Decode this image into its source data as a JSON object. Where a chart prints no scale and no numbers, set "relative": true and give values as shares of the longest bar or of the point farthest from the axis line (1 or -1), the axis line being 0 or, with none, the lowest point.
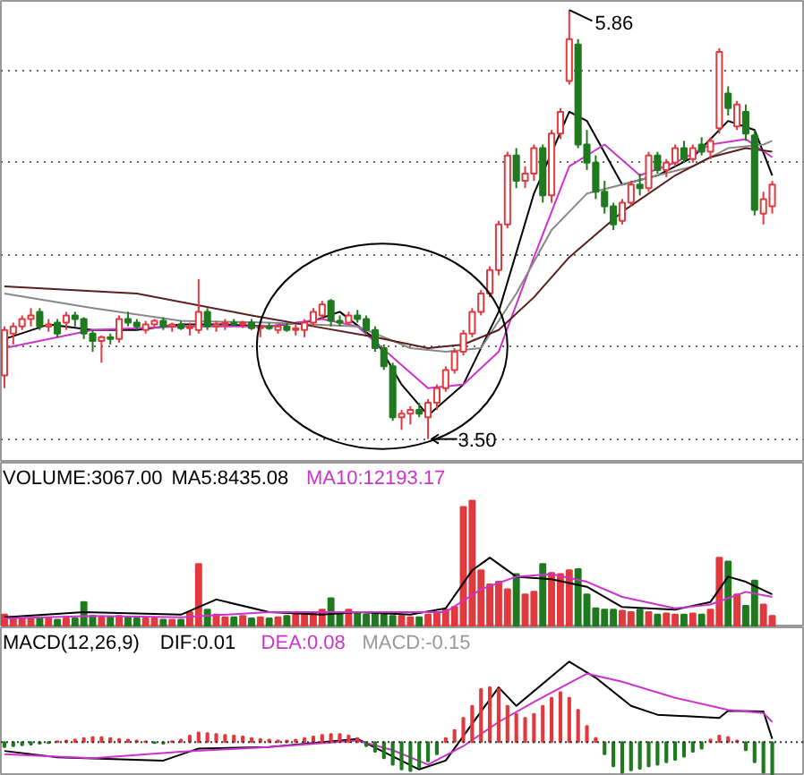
{
  "chart_data": [
    {
      "type": "candlestick",
      "categories": [
        null,
        null,
        null,
        null,
        null,
        null,
        null,
        null,
        null,
        null,
        null,
        null,
        null,
        null,
        null,
        null,
        null,
        null,
        null,
        null,
        null,
        null,
        null,
        null,
        null,
        null,
        null,
        null,
        null,
        null,
        null,
        null,
        null,
        null,
        null,
        null,
        null,
        null,
        null,
        null,
        null,
        null,
        null,
        null,
        null,
        null,
        null,
        null,
        null,
        null,
        null,
        null,
        null,
        null,
        null,
        null,
        null,
        null,
        null,
        null,
        null,
        null,
        null,
        null,
        null,
        null,
        null,
        null,
        null,
        null,
        null,
        null,
        null,
        null,
        null,
        null,
        null,
        null,
        null,
        null,
        null,
        null,
        null,
        null,
        null,
        null,
        null,
        null
      ],
      "ohlc": [
        [
          3.85,
          4.12,
          3.78,
          4.1
        ],
        [
          4.08,
          4.14,
          4.02,
          4.12
        ],
        [
          4.12,
          4.18,
          4.1,
          4.16
        ],
        [
          4.16,
          4.22,
          4.12,
          4.18
        ],
        [
          4.2,
          4.22,
          4.1,
          4.12
        ],
        [
          4.12,
          4.16,
          4.09,
          4.13
        ],
        [
          4.14,
          4.16,
          4.06,
          4.08
        ],
        [
          4.14,
          4.2,
          4.1,
          4.18
        ],
        [
          4.18,
          4.2,
          4.12,
          4.16
        ],
        [
          4.16,
          4.17,
          4.05,
          4.08
        ],
        [
          4.08,
          4.1,
          3.98,
          4.04
        ],
        [
          4.04,
          4.07,
          3.92,
          4.06
        ],
        [
          4.06,
          4.08,
          4.02,
          4.05
        ],
        [
          4.05,
          4.18,
          4.03,
          4.16
        ],
        [
          4.16,
          4.2,
          4.12,
          4.14
        ],
        [
          4.14,
          4.16,
          4.1,
          4.12
        ],
        [
          4.1,
          4.15,
          4.08,
          4.13
        ],
        [
          4.13,
          4.16,
          4.11,
          4.15
        ],
        [
          4.15,
          4.17,
          4.1,
          4.12
        ],
        [
          4.12,
          4.14,
          4.09,
          4.13
        ],
        [
          4.13,
          4.15,
          4.1,
          4.11
        ],
        [
          4.11,
          4.14,
          4.07,
          4.12
        ],
        [
          4.1,
          4.38,
          4.08,
          4.2
        ],
        [
          4.2,
          4.22,
          4.1,
          4.12
        ],
        [
          4.12,
          4.15,
          4.09,
          4.13
        ],
        [
          4.13,
          4.16,
          4.1,
          4.14
        ],
        [
          4.14,
          4.16,
          4.12,
          4.13
        ],
        [
          4.13,
          4.15,
          4.11,
          4.14
        ],
        [
          4.14,
          4.16,
          4.1,
          4.11
        ],
        [
          4.11,
          4.13,
          4.06,
          4.12
        ],
        [
          4.12,
          4.14,
          4.1,
          4.11
        ],
        [
          4.1,
          4.13,
          4.08,
          4.12
        ],
        [
          4.12,
          4.14,
          4.09,
          4.1
        ],
        [
          4.1,
          4.13,
          4.07,
          4.11
        ],
        [
          4.1,
          4.16,
          4.06,
          4.14
        ],
        [
          4.14,
          4.22,
          4.12,
          4.2
        ],
        [
          4.18,
          4.26,
          4.16,
          4.24
        ],
        [
          4.26,
          4.27,
          4.12,
          4.15
        ],
        [
          4.15,
          4.18,
          4.12,
          4.14
        ],
        [
          4.14,
          4.2,
          4.13,
          4.18
        ],
        [
          4.18,
          4.21,
          4.14,
          4.16
        ],
        [
          4.16,
          4.18,
          4.08,
          4.1
        ],
        [
          4.1,
          4.12,
          3.98,
          4.0
        ],
        [
          4.0,
          4.02,
          3.88,
          3.9
        ],
        [
          3.9,
          3.92,
          3.6,
          3.62
        ],
        [
          3.62,
          3.66,
          3.55,
          3.64
        ],
        [
          3.64,
          3.68,
          3.58,
          3.66
        ],
        [
          3.66,
          3.7,
          3.62,
          3.64
        ],
        [
          3.62,
          3.72,
          3.5,
          3.7
        ],
        [
          3.7,
          3.8,
          3.66,
          3.78
        ],
        [
          3.78,
          3.9,
          3.76,
          3.88
        ],
        [
          3.88,
          4.0,
          3.86,
          3.98
        ],
        [
          3.98,
          4.1,
          3.96,
          4.08
        ],
        [
          4.08,
          4.22,
          4.06,
          4.2
        ],
        [
          4.2,
          4.32,
          4.18,
          4.3
        ],
        [
          4.3,
          4.45,
          4.28,
          4.43
        ],
        [
          4.43,
          4.7,
          4.4,
          4.68
        ],
        [
          4.68,
          5.08,
          4.66,
          5.06
        ],
        [
          5.06,
          5.1,
          4.88,
          4.92
        ],
        [
          4.92,
          5.0,
          4.88,
          4.96
        ],
        [
          4.96,
          5.12,
          4.92,
          5.1
        ],
        [
          5.1,
          5.12,
          4.8,
          4.84
        ],
        [
          4.84,
          5.2,
          4.8,
          5.18
        ],
        [
          5.18,
          5.32,
          5.15,
          5.3
        ],
        [
          5.47,
          5.86,
          5.45,
          5.7
        ],
        [
          5.67,
          5.7,
          5.1,
          5.12
        ],
        [
          5.12,
          5.2,
          4.98,
          5.02
        ],
        [
          5.02,
          5.06,
          4.82,
          4.86
        ],
        [
          4.86,
          4.92,
          4.74,
          4.78
        ],
        [
          4.78,
          4.8,
          4.65,
          4.68
        ],
        [
          4.7,
          4.82,
          4.68,
          4.8
        ],
        [
          4.8,
          4.92,
          4.78,
          4.9
        ],
        [
          4.9,
          4.96,
          4.84,
          4.88
        ],
        [
          4.88,
          5.08,
          4.86,
          5.06
        ],
        [
          5.06,
          5.08,
          4.96,
          4.98
        ],
        [
          4.98,
          5.04,
          4.94,
          5.02
        ],
        [
          5.02,
          5.12,
          5.0,
          5.1
        ],
        [
          5.1,
          5.14,
          5.02,
          5.04
        ],
        [
          5.04,
          5.12,
          5.02,
          5.1
        ],
        [
          5.12,
          5.16,
          5.06,
          5.08
        ],
        [
          5.08,
          5.16,
          5.04,
          5.14
        ],
        [
          5.21,
          5.65,
          5.18,
          5.63
        ],
        [
          5.4,
          5.44,
          5.28,
          5.32
        ],
        [
          5.22,
          5.36,
          5.2,
          5.34
        ],
        [
          5.3,
          5.34,
          5.14,
          5.18
        ],
        [
          5.17,
          5.2,
          4.73,
          4.76
        ],
        [
          4.74,
          4.86,
          4.68,
          4.82
        ],
        [
          4.78,
          4.92,
          4.74,
          4.9
        ]
      ],
      "colors": [
        "#e0393e",
        "#e0393e",
        "#e0393e",
        "#e0393e",
        "#1f7a1f",
        "#e0393e",
        "#1f7a1f",
        "#e0393e",
        "#1f7a1f",
        "#1f7a1f",
        "#1f7a1f",
        "#e0393e",
        "#1f7a1f",
        "#e0393e",
        "#1f7a1f",
        "#1f7a1f",
        "#e0393e",
        "#e0393e",
        "#1f7a1f",
        "#e0393e",
        "#1f7a1f",
        "#e0393e",
        "#e0393e",
        "#1f7a1f",
        "#e0393e",
        "#e0393e",
        "#1f7a1f",
        "#e0393e",
        "#1f7a1f",
        "#e0393e",
        "#1f7a1f",
        "#e0393e",
        "#1f7a1f",
        "#e0393e",
        "#e0393e",
        "#e0393e",
        "#e0393e",
        "#1f7a1f",
        "#1f7a1f",
        "#e0393e",
        "#1f7a1f",
        "#1f7a1f",
        "#1f7a1f",
        "#1f7a1f",
        "#1f7a1f",
        "#e0393e",
        "#e0393e",
        "#1f7a1f",
        "#e0393e",
        "#e0393e",
        "#e0393e",
        "#e0393e",
        "#e0393e",
        "#e0393e",
        "#e0393e",
        "#e0393e",
        "#e0393e",
        "#e0393e",
        "#1f7a1f",
        "#e0393e",
        "#e0393e",
        "#1f7a1f",
        "#e0393e",
        "#e0393e",
        "#e0393e",
        "#1f7a1f",
        "#1f7a1f",
        "#1f7a1f",
        "#1f7a1f",
        "#1f7a1f",
        "#e0393e",
        "#e0393e",
        "#1f7a1f",
        "#e0393e",
        "#1f7a1f",
        "#e0393e",
        "#e0393e",
        "#1f7a1f",
        "#e0393e",
        "#1f7a1f",
        "#e0393e",
        "#e0393e",
        "#1f7a1f",
        "#e0393e",
        "#1f7a1f",
        "#1f7a1f",
        "#e0393e",
        "#e0393e"
      ],
      "ylim": [
        3.37,
        5.91
      ],
      "yticks": [
        {
          "value": 3.5,
          "label": null
        },
        {
          "value": 4.01,
          "label": null
        },
        {
          "value": 4.51,
          "label": null
        },
        {
          "value": 5.02,
          "label": null
        },
        {
          "value": 5.53,
          "label": null
        }
      ],
      "grid": "y",
      "tick_labels": false,
      "annotations": [
        "5.86",
        "3.50"
      ],
      "series": [
        {
          "type": "line",
          "color": "#000000",
          "values": [
            4.05,
            null,
            null,
            null,
            null,
            4.13,
            null,
            null,
            null,
            null,
            4.1,
            null,
            null,
            null,
            null,
            4.1,
            null,
            null,
            null,
            null,
            4.13,
            null,
            null,
            null,
            null,
            4.13,
            null,
            null,
            null,
            null,
            4.12,
            null,
            null,
            null,
            null,
            4.15,
            null,
            null,
            4.2,
            null,
            null,
            null,
            4.05,
            null,
            null,
            3.8,
            null,
            null,
            3.63,
            null,
            null,
            null,
            3.8,
            null,
            null,
            null,
            4.2,
            null,
            null,
            null,
            4.85,
            null,
            null,
            null,
            5.3,
            null,
            5.25,
            null,
            null,
            null,
            4.9,
            null,
            null,
            null,
            4.95,
            null,
            null,
            null,
            5.05,
            null,
            null,
            null,
            5.25,
            null,
            null,
            5.2,
            null,
            4.95
          ]
        },
        {
          "type": "line",
          "color": "#cc33cc",
          "values": [
            4.0,
            null,
            null,
            null,
            null,
            null,
            null,
            null,
            null,
            null,
            4.1,
            null,
            null,
            null,
            null,
            null,
            null,
            null,
            null,
            null,
            4.12,
            null,
            null,
            null,
            null,
            null,
            null,
            null,
            null,
            null,
            4.12,
            null,
            null,
            null,
            null,
            null,
            4.16,
            null,
            null,
            null,
            4.12,
            null,
            null,
            null,
            3.95,
            null,
            null,
            null,
            3.78,
            null,
            null,
            null,
            3.8,
            null,
            null,
            null,
            3.98,
            null,
            null,
            null,
            4.5,
            null,
            null,
            null,
            5.0,
            null,
            null,
            null,
            5.12,
            null,
            null,
            null,
            4.95,
            null,
            null,
            null,
            5.02,
            null,
            null,
            null,
            5.12,
            null,
            null,
            null,
            5.15,
            null,
            null,
            5.05
          ]
        },
        {
          "type": "line",
          "color": "#888888",
          "values": [
            4.3,
            null,
            null,
            null,
            null,
            null,
            null,
            null,
            null,
            null,
            4.22,
            null,
            null,
            null,
            null,
            null,
            null,
            null,
            null,
            null,
            4.15,
            null,
            null,
            null,
            null,
            null,
            null,
            null,
            null,
            null,
            4.14,
            null,
            null,
            null,
            null,
            null,
            null,
            null,
            null,
            null,
            4.12,
            null,
            null,
            null,
            null,
            null,
            4.0,
            null,
            null,
            null,
            3.98,
            null,
            null,
            null,
            4.0,
            null,
            null,
            null,
            4.3,
            null,
            null,
            null,
            4.65,
            null,
            null,
            null,
            4.85,
            null,
            null,
            null,
            4.9,
            null,
            null,
            null,
            4.95,
            null,
            null,
            null,
            5.0,
            null,
            null,
            null,
            5.1,
            null,
            null,
            null,
            5.12,
            5.14
          ]
        },
        {
          "type": "line",
          "color": "#5a1e1e",
          "values": [
            4.34,
            null,
            null,
            null,
            null,
            null,
            null,
            null,
            null,
            null,
            null,
            null,
            null,
            null,
            null,
            4.3,
            null,
            null,
            null,
            null,
            null,
            null,
            null,
            null,
            null,
            null,
            null,
            null,
            4.18,
            null,
            null,
            null,
            null,
            null,
            null,
            4.12,
            null,
            null,
            null,
            null,
            null,
            null,
            4.06,
            null,
            null,
            null,
            null,
            null,
            4.0,
            null,
            null,
            null,
            4.02,
            null,
            null,
            null,
            4.1,
            null,
            null,
            null,
            4.28,
            null,
            null,
            null,
            4.5,
            null,
            null,
            null,
            null,
            null,
            4.75,
            null,
            null,
            null,
            null,
            null,
            4.95,
            null,
            null,
            null,
            5.05,
            null,
            null,
            null,
            5.1,
            null,
            null,
            5.08
          ]
        }
      ]
    },
    {
      "type": "bar",
      "relative": true,
      "title": "VOLUME:3067.00",
      "legend": "top left",
      "categories": [
        null,
        null,
        null,
        null,
        null,
        null,
        null,
        null,
        null,
        null,
        null,
        null,
        null,
        null,
        null,
        null,
        null,
        null,
        null,
        null,
        null,
        null,
        null,
        null,
        null,
        null,
        null,
        null,
        null,
        null,
        null,
        null,
        null,
        null,
        null,
        null,
        null,
        null,
        null,
        null,
        null,
        null,
        null,
        null,
        null,
        null,
        null,
        null,
        null,
        null,
        null,
        null,
        null,
        null,
        null,
        null,
        null,
        null,
        null,
        null,
        null,
        null,
        null,
        null,
        null,
        null,
        null,
        null,
        null,
        null,
        null,
        null,
        null,
        null,
        null,
        null,
        null,
        null,
        null,
        null,
        null,
        null,
        null,
        null,
        null,
        null,
        null,
        null
      ],
      "series": [
        {
          "values": [
            0.1,
            0.08,
            0.07,
            0.07,
            0.08,
            0.07,
            0.06,
            0.07,
            0.07,
            0.2,
            0.09,
            0.08,
            0.08,
            0.09,
            0.08,
            0.07,
            0.07,
            0.07,
            0.06,
            0.06,
            0.06,
            0.12,
            0.5,
            0.14,
            0.1,
            0.08,
            0.08,
            0.09,
            0.07,
            0.08,
            0.07,
            0.08,
            0.09,
            0.1,
            0.1,
            0.12,
            0.14,
            0.23,
            0.12,
            0.14,
            0.12,
            0.1,
            0.11,
            0.1,
            0.09,
            0.09,
            0.08,
            0.08,
            0.1,
            0.12,
            0.14,
            0.16,
            0.95,
            1.0,
            0.45,
            0.34,
            0.36,
            0.3,
            0.42,
            0.26,
            0.28,
            0.5,
            0.43,
            0.42,
            0.45,
            0.46,
            0.26,
            0.15,
            0.14,
            0.14,
            0.13,
            0.12,
            0.14,
            0.12,
            0.1,
            0.11,
            0.1,
            0.1,
            0.11,
            0.1,
            0.14,
            0.55,
            0.52,
            0.26,
            0.17,
            0.37,
            0.18,
            0.09
          ],
          "colors": [
            "#e0393e",
            "#e0393e",
            "#e0393e",
            "#e0393e",
            "#1f7a1f",
            "#e0393e",
            "#1f7a1f",
            "#e0393e",
            "#1f7a1f",
            "#1f7a1f",
            "#1f7a1f",
            "#e0393e",
            "#1f7a1f",
            "#e0393e",
            "#1f7a1f",
            "#1f7a1f",
            "#e0393e",
            "#e0393e",
            "#1f7a1f",
            "#e0393e",
            "#1f7a1f",
            "#e0393e",
            "#e0393e",
            "#1f7a1f",
            "#e0393e",
            "#e0393e",
            "#1f7a1f",
            "#e0393e",
            "#1f7a1f",
            "#e0393e",
            "#1f7a1f",
            "#e0393e",
            "#1f7a1f",
            "#e0393e",
            "#e0393e",
            "#e0393e",
            "#e0393e",
            "#1f7a1f",
            "#1f7a1f",
            "#e0393e",
            "#1f7a1f",
            "#1f7a1f",
            "#1f7a1f",
            "#1f7a1f",
            "#1f7a1f",
            "#e0393e",
            "#e0393e",
            "#1f7a1f",
            "#e0393e",
            "#e0393e",
            "#e0393e",
            "#e0393e",
            "#e0393e",
            "#e0393e",
            "#e0393e",
            "#e0393e",
            "#e0393e",
            "#e0393e",
            "#1f7a1f",
            "#e0393e",
            "#e0393e",
            "#1f7a1f",
            "#e0393e",
            "#e0393e",
            "#e0393e",
            "#1f7a1f",
            "#1f7a1f",
            "#1f7a1f",
            "#1f7a1f",
            "#1f7a1f",
            "#e0393e",
            "#e0393e",
            "#1f7a1f",
            "#e0393e",
            "#1f7a1f",
            "#e0393e",
            "#e0393e",
            "#1f7a1f",
            "#e0393e",
            "#1f7a1f",
            "#e0393e",
            "#e0393e",
            "#1f7a1f",
            "#e0393e",
            "#1f7a1f",
            "#1f7a1f",
            "#e0393e",
            "#e0393e"
          ]
        },
        {
          "type": "line",
          "name": "MA5:8435.08",
          "color": "#000000",
          "values": [
            0.08,
            null,
            null,
            null,
            null,
            null,
            null,
            null,
            null,
            0.12,
            null,
            null,
            null,
            null,
            null,
            null,
            null,
            null,
            null,
            null,
            0.1,
            null,
            null,
            null,
            0.22,
            null,
            null,
            null,
            null,
            null,
            0.12,
            null,
            null,
            null,
            null,
            null,
            0.1,
            null,
            null,
            null,
            0.12,
            null,
            null,
            null,
            null,
            null,
            0.1,
            null,
            null,
            null,
            0.15,
            null,
            null,
            0.45,
            null,
            0.55,
            null,
            null,
            0.4,
            null,
            null,
            null,
            0.38,
            null,
            null,
            null,
            0.32,
            null,
            null,
            null,
            0.16,
            null,
            null,
            null,
            null,
            null,
            0.14,
            null,
            null,
            null,
            0.2,
            null,
            0.4,
            null,
            0.36,
            null,
            null,
            0.26
          ]
        },
        {
          "type": "line",
          "name": "MA10:12193.17",
          "color": "#cc33cc",
          "values": [
            0.07,
            null,
            null,
            null,
            null,
            null,
            null,
            null,
            null,
            null,
            0.09,
            null,
            null,
            null,
            null,
            null,
            null,
            null,
            null,
            null,
            0.08,
            null,
            null,
            null,
            null,
            null,
            null,
            null,
            null,
            null,
            0.12,
            null,
            null,
            null,
            null,
            null,
            null,
            null,
            null,
            null,
            0.12,
            null,
            null,
            null,
            null,
            null,
            null,
            null,
            null,
            null,
            0.12,
            null,
            null,
            null,
            0.3,
            null,
            null,
            null,
            0.4,
            null,
            null,
            null,
            0.42,
            null,
            null,
            null,
            0.36,
            null,
            null,
            null,
            0.24,
            null,
            null,
            null,
            null,
            null,
            0.15,
            null,
            null,
            null,
            0.18,
            null,
            null,
            null,
            0.28,
            null,
            null,
            0.24
          ]
        }
      ]
    },
    {
      "type": "bar",
      "relative": true,
      "title": "MACD(12,26,9)",
      "legend": "top left",
      "ref_lines": [
        {
          "axis": "y",
          "value": 0,
          "line_style": "dotted",
          "color": "#333333"
        }
      ],
      "categories": [
        null,
        null,
        null,
        null,
        null,
        null,
        null,
        null,
        null,
        null,
        null,
        null,
        null,
        null,
        null,
        null,
        null,
        null,
        null,
        null,
        null,
        null,
        null,
        null,
        null,
        null,
        null,
        null,
        null,
        null,
        null,
        null,
        null,
        null,
        null,
        null,
        null,
        null,
        null,
        null,
        null,
        null,
        null,
        null,
        null,
        null,
        null,
        null,
        null,
        null,
        null,
        null,
        null,
        null,
        null,
        null,
        null,
        null,
        null,
        null,
        null,
        null,
        null,
        null,
        null,
        null,
        null,
        null,
        null,
        null,
        null,
        null,
        null,
        null,
        null,
        null,
        null,
        null,
        null,
        null,
        null,
        null,
        null,
        null,
        null,
        null,
        null,
        null
      ],
      "series": [
        {
          "type": "line",
          "name": "DIF:0.01",
          "color": "#000000",
          "values": [
            -0.11,
            null,
            null,
            null,
            null,
            null,
            -0.19,
            null,
            null,
            null,
            null,
            null,
            null,
            null,
            null,
            null,
            null,
            null,
            -0.23,
            null,
            null,
            null,
            -0.08,
            null,
            null,
            null,
            null,
            null,
            null,
            null,
            -0.06,
            null,
            null,
            null,
            null,
            null,
            null,
            null,
            null,
            null,
            0.04,
            null,
            null,
            null,
            null,
            null,
            null,
            -0.34,
            null,
            null,
            -0.23,
            null,
            null,
            null,
            0.38,
            null,
            0.68,
            null,
            0.45,
            null,
            null,
            null,
            null,
            null,
            1.0,
            null,
            null,
            0.8,
            null,
            null,
            null,
            0.45,
            null,
            null,
            0.34,
            null,
            null,
            null,
            null,
            null,
            null,
            0.3,
            0.39,
            null,
            null,
            null,
            0.38,
            0.04
          ]
        },
        {
          "type": "line",
          "name": "DEA:0.08",
          "color": "#cc33cc",
          "values": [
            -0.15,
            null,
            null,
            null,
            null,
            null,
            null,
            null,
            null,
            null,
            -0.2,
            null,
            null,
            null,
            null,
            null,
            null,
            null,
            null,
            null,
            -0.12,
            null,
            null,
            null,
            null,
            null,
            null,
            null,
            null,
            null,
            -0.06,
            null,
            null,
            null,
            null,
            null,
            null,
            null,
            null,
            null,
            0.02,
            null,
            null,
            null,
            -0.1,
            null,
            null,
            null,
            -0.28,
            null,
            null,
            null,
            -0.05,
            null,
            null,
            null,
            0.25,
            null,
            null,
            null,
            0.5,
            null,
            null,
            null,
            null,
            null,
            0.85,
            null,
            null,
            null,
            0.75,
            null,
            null,
            null,
            null,
            null,
            0.55,
            null,
            null,
            null,
            null,
            null,
            0.4,
            null,
            null,
            null,
            0.36,
            0.25
          ]
        },
        {
          "name": "MACD:-0.15",
          "color": "#999999",
          "values": [
            -0.06,
            -0.05,
            -0.04,
            -0.03,
            -0.02,
            -0.01,
            0.01,
            0.02,
            0.03,
            0.05,
            0.06,
            0.06,
            0.05,
            0.04,
            0.03,
            0.02,
            0.01,
            -0.01,
            -0.02,
            0.01,
            0.03,
            0.08,
            0.12,
            0.11,
            0.1,
            0.09,
            0.08,
            0.07,
            0.05,
            0.04,
            0.03,
            0.02,
            0.02,
            0.03,
            0.05,
            0.07,
            0.09,
            0.1,
            0.1,
            0.08,
            0.05,
            -0.05,
            -0.12,
            -0.2,
            -0.28,
            -0.34,
            -0.36,
            -0.32,
            -0.24,
            -0.15,
            0.05,
            0.15,
            0.3,
            0.45,
            0.66,
            0.68,
            0.66,
            0.45,
            0.35,
            0.3,
            0.35,
            0.45,
            0.55,
            0.62,
            0.55,
            0.4,
            0.2,
            0.05,
            -0.15,
            -0.3,
            -0.38,
            -0.35,
            -0.33,
            -0.3,
            -0.28,
            -0.25,
            -0.22,
            -0.18,
            -0.12,
            -0.08,
            0.03,
            0.08,
            0.06,
            0.02,
            -0.1,
            -0.25,
            -0.38,
            -0.4
          ],
          "colors": [
            "#1f7a1f",
            "#1f7a1f",
            "#1f7a1f",
            "#1f7a1f",
            "#1f7a1f",
            "#1f7a1f",
            "#e0393e",
            "#e0393e",
            "#e0393e",
            "#e0393e",
            "#e0393e",
            "#e0393e",
            "#e0393e",
            "#e0393e",
            "#e0393e",
            "#e0393e",
            "#e0393e",
            "#1f7a1f",
            "#1f7a1f",
            "#e0393e",
            "#e0393e",
            "#e0393e",
            "#e0393e",
            "#e0393e",
            "#e0393e",
            "#e0393e",
            "#e0393e",
            "#e0393e",
            "#e0393e",
            "#e0393e",
            "#e0393e",
            "#e0393e",
            "#e0393e",
            "#e0393e",
            "#e0393e",
            "#e0393e",
            "#e0393e",
            "#e0393e",
            "#e0393e",
            "#e0393e",
            "#e0393e",
            "#1f7a1f",
            "#1f7a1f",
            "#1f7a1f",
            "#1f7a1f",
            "#1f7a1f",
            "#1f7a1f",
            "#1f7a1f",
            "#1f7a1f",
            "#1f7a1f",
            "#e0393e",
            "#e0393e",
            "#e0393e",
            "#e0393e",
            "#e0393e",
            "#e0393e",
            "#e0393e",
            "#e0393e",
            "#e0393e",
            "#e0393e",
            "#e0393e",
            "#e0393e",
            "#e0393e",
            "#e0393e",
            "#e0393e",
            "#e0393e",
            "#e0393e",
            "#e0393e",
            "#1f7a1f",
            "#1f7a1f",
            "#1f7a1f",
            "#1f7a1f",
            "#1f7a1f",
            "#1f7a1f",
            "#1f7a1f",
            "#1f7a1f",
            "#1f7a1f",
            "#1f7a1f",
            "#1f7a1f",
            "#1f7a1f",
            "#e0393e",
            "#e0393e",
            "#e0393e",
            "#e0393e",
            "#1f7a1f",
            "#1f7a1f",
            "#1f7a1f",
            "#1f7a1f"
          ]
        }
      ]
    }
  ]
}
